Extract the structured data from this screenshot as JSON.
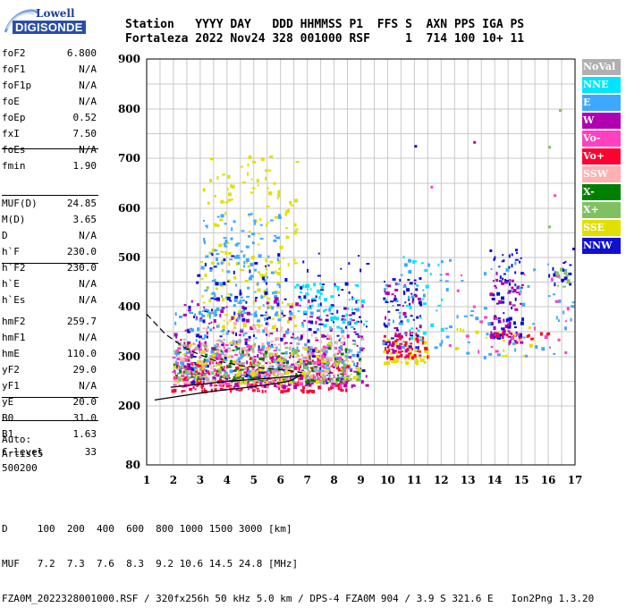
{
  "logo": {
    "line1": "Lowell",
    "line2": "DIGISONDE"
  },
  "header": {
    "row1": "Station   YYYY DAY   DDD HHMMSS P1  FFS S  AXN PPS IGA PS",
    "row2": "Fortaleza 2022 Nov24 328 001000 RSF     1  714 100 10+ 11"
  },
  "params": [
    {
      "label": "foF2",
      "value": "6.800"
    },
    {
      "label": "foF1",
      "value": "N/A"
    },
    {
      "label": "foF1p",
      "value": "N/A"
    },
    {
      "label": "foE",
      "value": "N/A"
    },
    {
      "label": "foEp",
      "value": "0.52"
    },
    {
      "label": "fxI",
      "value": "7.50"
    },
    {
      "label": "foEs",
      "value": "N/A"
    },
    {
      "label": "fmin",
      "value": "1.90"
    },
    {
      "label": "MUF(D)",
      "value": "24.85"
    },
    {
      "label": "M(D)",
      "value": "3.65"
    },
    {
      "label": "D",
      "value": "N/A"
    },
    {
      "label": "h`F",
      "value": "230.0"
    },
    {
      "label": "h`F2",
      "value": "230.0"
    },
    {
      "label": "h`E",
      "value": "N/A"
    },
    {
      "label": "h`Es",
      "value": "N/A"
    },
    {
      "label": "hmF2",
      "value": "259.7"
    },
    {
      "label": "hmF1",
      "value": "N/A"
    },
    {
      "label": "hmE",
      "value": "110.0"
    },
    {
      "label": "yF2",
      "value": "29.0"
    },
    {
      "label": "yF1",
      "value": "N/A"
    },
    {
      "label": "yE",
      "value": "20.0"
    },
    {
      "label": "B0",
      "value": "31.0"
    },
    {
      "label": "B1",
      "value": "1.63"
    },
    {
      "label": "C-level",
      "value": "33"
    }
  ],
  "auto": {
    "line1": "Auto:",
    "line2": "Artist5",
    "line3": "500200"
  },
  "legend": [
    {
      "label": "NoVal",
      "color": "#b0b0b0"
    },
    {
      "label": "NNE",
      "color": "#00e5ff"
    },
    {
      "label": "E",
      "color": "#3ea8ff"
    },
    {
      "label": "W",
      "color": "#b000b0"
    },
    {
      "label": "Vo-",
      "color": "#ff40c0"
    },
    {
      "label": "Vo+",
      "color": "#ff0030"
    },
    {
      "label": "SSW",
      "color": "#ffb0b0"
    },
    {
      "label": "X-",
      "color": "#008000"
    },
    {
      "label": "X+",
      "color": "#80c060"
    },
    {
      "label": "SSE",
      "color": "#e0e000"
    },
    {
      "label": "NNW",
      "color": "#1010d0"
    }
  ],
  "footer": {
    "line1": "D     100  200  400  600  800 1000 1500 3000 [km]",
    "line2": "MUF   7.2  7.3  7.6  8.3  9.2 10.6 14.5 24.8 [MHz]",
    "line3": "FZA0M_2022328001000.RSF / 320fx256h 50 kHz 5.0 km / DPS-4 FZA0M 904 / 3.9 S 321.6 E   Ion2Png 1.3.20"
  },
  "chart_data": {
    "type": "scatter",
    "xlim": [
      1,
      17
    ],
    "ylim": [
      80,
      900
    ],
    "xticks": [
      1,
      2,
      3,
      4,
      5,
      6,
      7,
      8,
      9,
      10,
      11,
      12,
      13,
      14,
      15,
      16,
      17
    ],
    "yticks": [
      80,
      200,
      300,
      400,
      500,
      600,
      700,
      800,
      900
    ],
    "grid": true,
    "legend_position": "right",
    "traces": [
      {
        "name": "profile",
        "style": "solid",
        "x": [
          1.9,
          3.0,
          4.0,
          5.0,
          6.0,
          6.6,
          6.8
        ],
        "y": [
          238,
          244,
          250,
          254,
          258,
          261,
          263
        ]
      },
      {
        "name": "profile-lower",
        "style": "solid",
        "x": [
          1.3,
          2.5,
          3.5,
          4.5,
          5.5,
          6.3,
          6.8
        ],
        "y": [
          212,
          222,
          230,
          236,
          243,
          250,
          263
        ]
      },
      {
        "name": "profile-dashed",
        "style": "dashed",
        "x": [
          1.0,
          1.7,
          2.5,
          3.5,
          4.5,
          5.5,
          6.3,
          6.8
        ],
        "y": [
          385,
          345,
          315,
          293,
          282,
          276,
          272,
          268
        ]
      }
    ],
    "clusters": [
      {
        "mode": "yellow",
        "x": [
          3.0,
          6.6
        ],
        "y": [
          360,
          710
        ],
        "n": 180
      },
      {
        "mode": "E",
        "x": [
          3.0,
          6.0
        ],
        "y": [
          380,
          600
        ],
        "n": 130
      },
      {
        "mode": "Vo+",
        "x": [
          1.9,
          8.5
        ],
        "y": [
          232,
          300
        ],
        "n": 260
      },
      {
        "mode": "Vo-",
        "x": [
          1.9,
          8.5
        ],
        "y": [
          240,
          330
        ],
        "n": 220
      },
      {
        "mode": "W",
        "x": [
          2.0,
          9.2
        ],
        "y": [
          240,
          420
        ],
        "n": 220
      },
      {
        "mode": "NNW",
        "x": [
          2.5,
          9.2
        ],
        "y": [
          250,
          510
        ],
        "n": 180
      },
      {
        "mode": "SSW",
        "x": [
          2.0,
          8.5
        ],
        "y": [
          250,
          370
        ],
        "n": 160
      },
      {
        "mode": "E",
        "x": [
          2.0,
          9.0
        ],
        "y": [
          260,
          400
        ],
        "n": 160
      },
      {
        "mode": "NNE",
        "x": [
          6.5,
          9.2
        ],
        "y": [
          360,
          450
        ],
        "n": 60
      },
      {
        "mode": "X-",
        "x": [
          2.0,
          9.0
        ],
        "y": [
          250,
          320
        ],
        "n": 90
      },
      {
        "mode": "X+",
        "x": [
          2.0,
          9.0
        ],
        "y": [
          250,
          330
        ],
        "n": 80
      },
      {
        "mode": "SSE",
        "x": [
          2.0,
          9.0
        ],
        "y": [
          250,
          330
        ],
        "n": 100
      },
      {
        "mode": "NoVal",
        "x": [
          2.0,
          9.0
        ],
        "y": [
          250,
          340
        ],
        "n": 80
      },
      {
        "mode": "SSE",
        "x": [
          9.8,
          11.5
        ],
        "y": [
          290,
          340
        ],
        "n": 60
      },
      {
        "mode": "Vo+",
        "x": [
          9.8,
          11.5
        ],
        "y": [
          300,
          350
        ],
        "n": 50
      },
      {
        "mode": "NNW",
        "x": [
          9.8,
          11.2
        ],
        "y": [
          320,
          460
        ],
        "n": 50
      },
      {
        "mode": "W",
        "x": [
          9.8,
          11.2
        ],
        "y": [
          300,
          460
        ],
        "n": 40
      },
      {
        "mode": "E",
        "x": [
          9.8,
          12.2
        ],
        "y": [
          320,
          500
        ],
        "n": 40
      },
      {
        "mode": "NNE",
        "x": [
          10.5,
          12.2
        ],
        "y": [
          340,
          520
        ],
        "n": 25
      },
      {
        "mode": "NNW",
        "x": [
          13.8,
          15.0
        ],
        "y": [
          340,
          520
        ],
        "n": 70
      },
      {
        "mode": "W",
        "x": [
          13.8,
          15.0
        ],
        "y": [
          330,
          480
        ],
        "n": 50
      },
      {
        "mode": "E",
        "x": [
          12.0,
          17.0
        ],
        "y": [
          300,
          500
        ],
        "n": 45
      },
      {
        "mode": "Vo+",
        "x": [
          14.0,
          16.0
        ],
        "y": [
          338,
          350
        ],
        "n": 20
      },
      {
        "mode": "Vo-",
        "x": [
          12.0,
          17.0
        ],
        "y": [
          310,
          490
        ],
        "n": 25
      },
      {
        "mode": "SSE",
        "x": [
          12.5,
          15.5
        ],
        "y": [
          300,
          370
        ],
        "n": 20
      },
      {
        "mode": "NNW",
        "x": [
          16.0,
          17.0
        ],
        "y": [
          420,
          500
        ],
        "n": 15
      },
      {
        "mode": "X+",
        "x": [
          16.2,
          17.0
        ],
        "y": [
          440,
          480
        ],
        "n": 10
      }
    ],
    "isolated_points": [
      {
        "mode": "NNW",
        "x": 11.0,
        "y": 727
      },
      {
        "mode": "W",
        "x": 13.2,
        "y": 735
      },
      {
        "mode": "X+",
        "x": 16.4,
        "y": 800
      },
      {
        "mode": "X+",
        "x": 16.0,
        "y": 725
      },
      {
        "mode": "X+",
        "x": 16.0,
        "y": 565
      },
      {
        "mode": "Vo-",
        "x": 16.2,
        "y": 628
      },
      {
        "mode": "NNW",
        "x": 16.9,
        "y": 520
      },
      {
        "mode": "Vo-",
        "x": 11.6,
        "y": 645
      }
    ]
  }
}
